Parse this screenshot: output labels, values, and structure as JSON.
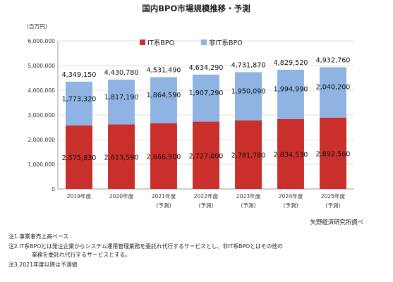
{
  "chart_data": {
    "type": "bar",
    "stacked": true,
    "title": "国内BPO市場規模推移・予測",
    "unit": "(百万円)",
    "categories": [
      "2019年度",
      "2020年度",
      "2021年度",
      "2022年度",
      "2023年度",
      "2024年度",
      "2025年度"
    ],
    "category_sublabels": [
      "",
      "",
      "(予測)",
      "(予測)",
      "(予測)",
      "(予測)",
      "(予測)"
    ],
    "series": [
      {
        "name": "IT系BPO",
        "color": "#c9302c",
        "values": [
          2575830,
          2613590,
          2666900,
          2727000,
          2781780,
          2834530,
          2892560
        ]
      },
      {
        "name": "非IT系BPO",
        "color": "#8fb4e3",
        "values": [
          1773320,
          1817190,
          1864590,
          1907290,
          1950090,
          1994990,
          2040200
        ]
      }
    ],
    "totals": [
      4349150,
      4430780,
      4531490,
      4634290,
      4731870,
      4829520,
      4932760
    ],
    "series_labels": [
      [
        "2,575,830",
        "2,613,590",
        "2,666,900",
        "2,727,000",
        "2,781,780",
        "2,834,530",
        "2,892,560"
      ],
      [
        "1,773,320",
        "1,817,190",
        "1,864,590",
        "1,907,290",
        "1,950,090",
        "1,994,990",
        "2,040,200"
      ]
    ],
    "total_labels": [
      "4,349,150",
      "4,430,780",
      "4,531,490",
      "4,634,290",
      "4,731,870",
      "4,829,520",
      "4,932,760"
    ],
    "ylim": [
      0,
      6000000
    ],
    "yticks": [
      0,
      1000000,
      2000000,
      3000000,
      4000000,
      5000000,
      6000000
    ],
    "ytick_labels": [
      "0",
      "1,000,000",
      "2,000,000",
      "3,000,000",
      "4,000,000",
      "5,000,000",
      "6,000,000"
    ],
    "grid": true,
    "legend_position": "top",
    "source": "矢野経済研究所調べ"
  },
  "notes": [
    "注1.事業者売上高ベース",
    "注2.IT系BPOとは発注企業からシステム運用管理業務を委託れ代行するサービスとし、非IT系BPOとはその他の",
    "業務を委託れ代行するサービスとする。",
    "注3.2021年度以降は予測値"
  ]
}
